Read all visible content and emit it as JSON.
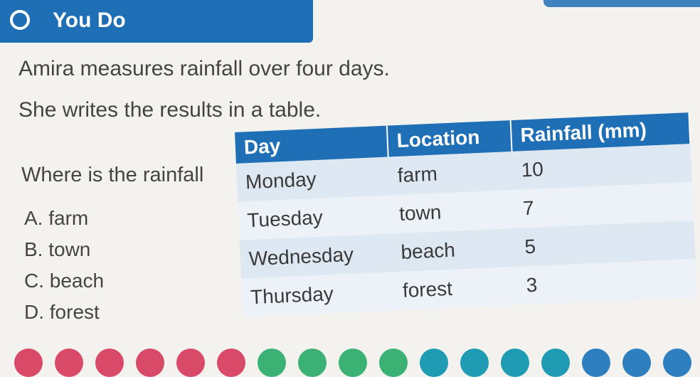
{
  "header": {
    "title": "You Do"
  },
  "lines": [
    "Amira measures rainfall over four days.",
    "She writes the results in a table."
  ],
  "question": "Where is the rainfall",
  "options": [
    "A. farm",
    "B. town",
    "C. beach",
    "D. forest"
  ],
  "table": {
    "headers": [
      "Day",
      "Location",
      "Rainfall (mm)"
    ],
    "rows": [
      [
        "Monday",
        "farm",
        "10"
      ],
      [
        "Tuesday",
        "town",
        "7"
      ],
      [
        "Wednesday",
        "beach",
        "5"
      ],
      [
        "Thursday",
        "forest",
        "3"
      ]
    ]
  },
  "dock": {
    "icons": [
      {
        "name": "tool-icon-1",
        "color": "#d94a68"
      },
      {
        "name": "tool-icon-2",
        "color": "#d94a68"
      },
      {
        "name": "tool-icon-3",
        "color": "#d94a68"
      },
      {
        "name": "tool-icon-4",
        "color": "#d94a68"
      },
      {
        "name": "tool-icon-5",
        "color": "#d94a68"
      },
      {
        "name": "tool-icon-6",
        "color": "#d94a68"
      },
      {
        "name": "tool-icon-7",
        "color": "#3bb273"
      },
      {
        "name": "tool-icon-8",
        "color": "#3bb273"
      },
      {
        "name": "tool-icon-9",
        "color": "#3bb273"
      },
      {
        "name": "tool-icon-10",
        "color": "#3bb273"
      },
      {
        "name": "tool-icon-11",
        "color": "#1f9bb3"
      },
      {
        "name": "tool-icon-12",
        "color": "#1f9bb3"
      },
      {
        "name": "tool-icon-13",
        "color": "#1f9bb3"
      },
      {
        "name": "tool-icon-14",
        "color": "#1f9bb3"
      },
      {
        "name": "tool-icon-15",
        "color": "#2d7fc0"
      },
      {
        "name": "tool-icon-16",
        "color": "#2d7fc0"
      },
      {
        "name": "tool-icon-17",
        "color": "#2d7fc0"
      }
    ]
  },
  "colors": {
    "accent": "#1f6fb6",
    "row_alt": "#dde8f3",
    "background": "#f3f2ee"
  }
}
